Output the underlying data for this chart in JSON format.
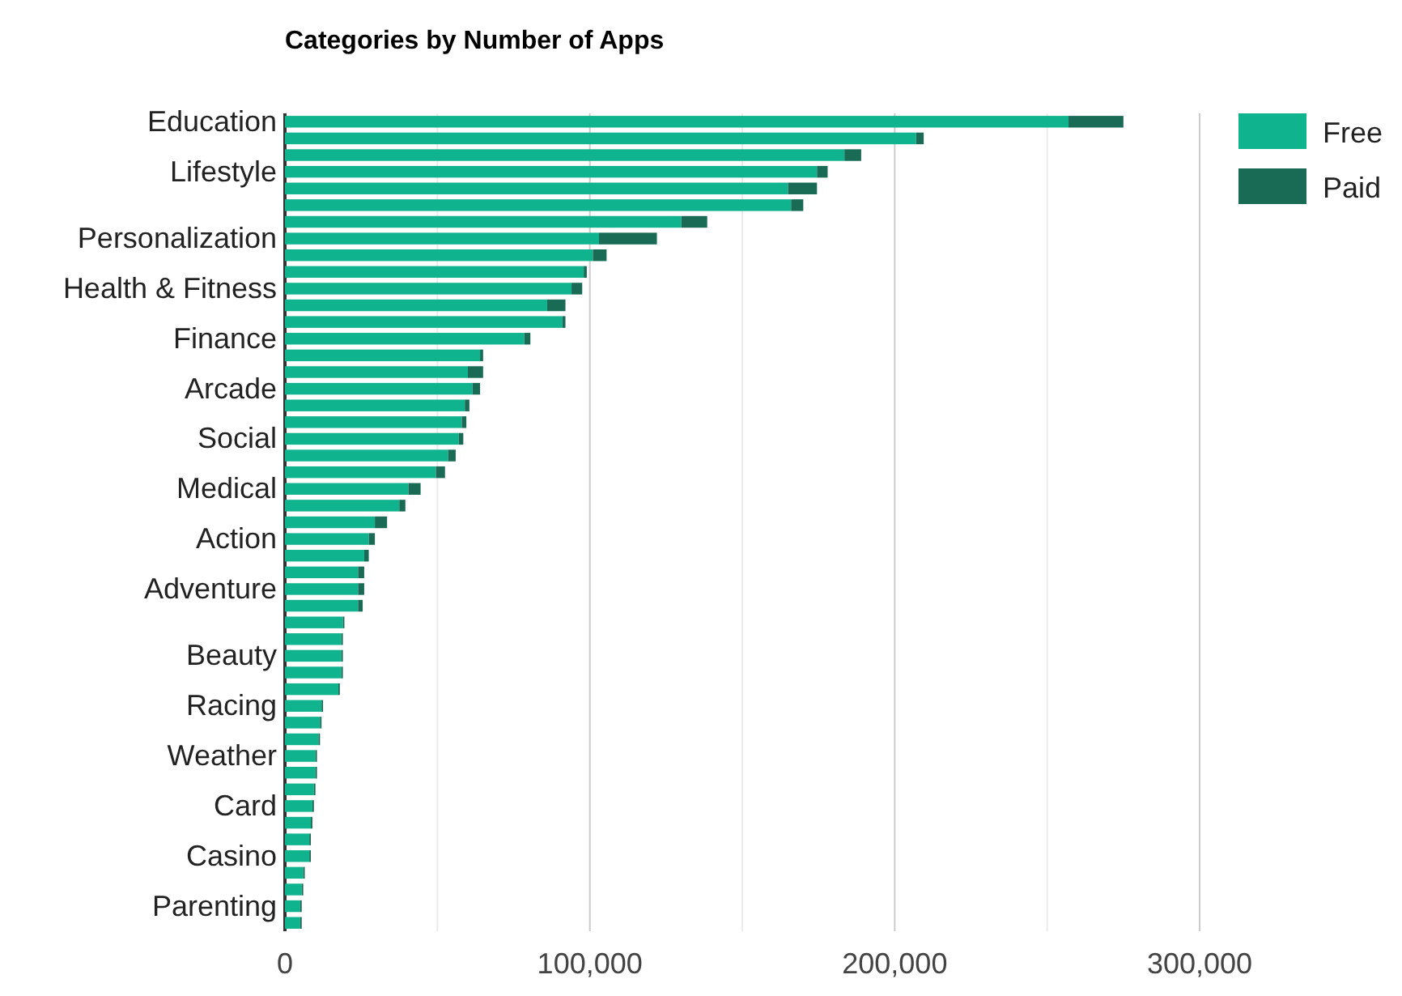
{
  "chart_data": {
    "type": "bar",
    "title": "Categories by Number of Apps",
    "orientation": "horizontal",
    "stacked": true,
    "categories": [
      "Education",
      null,
      null,
      "Lifestyle",
      null,
      null,
      null,
      "Personalization",
      null,
      null,
      "Health & Fitness",
      null,
      null,
      "Finance",
      null,
      null,
      "Arcade",
      null,
      null,
      "Social",
      null,
      null,
      "Medical",
      null,
      null,
      "Action",
      null,
      null,
      "Adventure",
      null,
      null,
      null,
      "Beauty",
      null,
      null,
      "Racing",
      null,
      null,
      "Weather",
      null,
      null,
      "Card",
      null,
      null,
      "Casino",
      null,
      null,
      "Parenting",
      null
    ],
    "series": [
      {
        "name": "Free",
        "color": "#0fb48f",
        "values": [
          257000,
          207000,
          183500,
          174500,
          165000,
          166000,
          130000,
          103000,
          101000,
          98000,
          94000,
          86000,
          91000,
          78500,
          64000,
          60000,
          61500,
          59000,
          58000,
          57000,
          53500,
          49500,
          40500,
          37500,
          29500,
          27500,
          26000,
          24000,
          24000,
          24000,
          19000,
          18500,
          18500,
          18500,
          17500,
          12000,
          11500,
          11000,
          10000,
          10000,
          9500,
          9000,
          8500,
          8000,
          8000,
          6000,
          5500,
          5000,
          5000
        ]
      },
      {
        "name": "Paid",
        "color": "#1a6b55",
        "values": [
          18000,
          2500,
          5500,
          3500,
          9500,
          4000,
          8500,
          19000,
          4500,
          1000,
          3500,
          6000,
          1000,
          2000,
          1000,
          5000,
          2500,
          1500,
          1500,
          1500,
          2500,
          3000,
          4000,
          2000,
          4000,
          2000,
          1500,
          2000,
          2000,
          1500,
          500,
          500,
          500,
          500,
          500,
          500,
          500,
          500,
          500,
          500,
          500,
          500,
          500,
          500,
          500,
          500,
          500,
          500,
          500
        ]
      }
    ],
    "xlim": [
      0,
      300000
    ],
    "xticks": [
      0,
      {
        "value": 50000,
        "label": null
      },
      {
        "value": 100000,
        "label": "100,000"
      },
      {
        "value": 150000,
        "label": null
      },
      {
        "value": 200000,
        "label": "200,000"
      },
      {
        "value": 250000,
        "label": null
      },
      {
        "value": 300000,
        "label": "300,000"
      }
    ],
    "grid": "x",
    "legend": "right"
  }
}
